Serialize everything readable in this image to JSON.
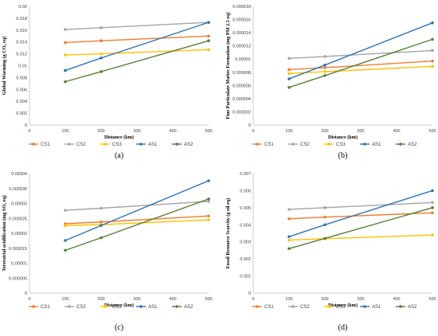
{
  "colors": {
    "CS1": "#ED7D31",
    "CS2": "#A5A5A5",
    "CS3": "#FFC000",
    "AS1": "#2E75B6",
    "AS2": "#548235"
  },
  "chart_data": [
    {
      "type": "line",
      "panel_label": "(a)",
      "xlabel": "Distance (km)",
      "ylabel": "Global Warming (g CO₂ eq)",
      "xlim": [
        0,
        500
      ],
      "ylim": [
        0,
        0.02
      ],
      "x_ticks": [
        "0",
        "100",
        "200",
        "300",
        "400",
        "500"
      ],
      "y_ticks": [
        "0",
        "0.002",
        "0.004",
        "0.006",
        "0.008",
        "0.01",
        "0.012",
        "0.014",
        "0.016",
        "0.018",
        "0.02"
      ],
      "x": [
        100,
        200,
        500
      ],
      "series": [
        {
          "name": "CS1",
          "values": [
            0.0139,
            0.0142,
            0.015
          ]
        },
        {
          "name": "CS2",
          "values": [
            0.0161,
            0.0164,
            0.0173
          ]
        },
        {
          "name": "CS3",
          "values": [
            0.0118,
            0.012,
            0.0127
          ]
        },
        {
          "name": "AS1",
          "values": [
            0.0092,
            0.0113,
            0.0173
          ]
        },
        {
          "name": "AS2",
          "values": [
            0.0073,
            0.009,
            0.0142
          ]
        }
      ],
      "grid": false,
      "legend": "bottom"
    },
    {
      "type": "line",
      "panel_label": "(b)",
      "xlabel": "Distance (km)",
      "ylabel": "Fine Particulate Matter Formation (mg PM 2.5 eq)",
      "xlim": [
        0,
        500
      ],
      "ylim": [
        0,
        1.8e-05
      ],
      "x_ticks": [
        "0",
        "100",
        "200",
        "300",
        "400",
        "500"
      ],
      "y_ticks": [
        "0",
        "0.000002",
        "0.000004",
        "0.000006",
        "0.000008",
        "0.00001",
        "0.000012",
        "0.000014",
        "0.000016",
        "0.000018"
      ],
      "x": [
        100,
        200,
        500
      ],
      "series": [
        {
          "name": "CS1",
          "values": [
            8.4e-06,
            8.7e-06,
            9.7e-06
          ]
        },
        {
          "name": "CS2",
          "values": [
            1.01e-05,
            1.04e-05,
            1.13e-05
          ]
        },
        {
          "name": "CS3",
          "values": [
            7.8e-06,
            8.1e-06,
            8.9e-06
          ]
        },
        {
          "name": "AS1",
          "values": [
            7e-06,
            9.1e-06,
            1.55e-05
          ]
        },
        {
          "name": "AS2",
          "values": [
            5.7e-06,
            7.5e-06,
            1.3e-05
          ]
        }
      ],
      "grid": false,
      "legend": "bottom"
    },
    {
      "type": "line",
      "panel_label": "(c)",
      "xlabel": "Distance (km)",
      "ylabel": "Terrestrial acidification (mg SO₂ eq)",
      "xlim": [
        0,
        500
      ],
      "ylim": [
        0,
        4e-05
      ],
      "x_ticks": [
        "0",
        "100",
        "200",
        "300",
        "400",
        "500"
      ],
      "y_ticks": [
        "0",
        "0.000005",
        "0.00001",
        "0.000015",
        "0.00002",
        "0.000025",
        "0.00003",
        "0.000035",
        "0.00004"
      ],
      "x": [
        100,
        200,
        500
      ],
      "series": [
        {
          "name": "CS1",
          "values": [
            2.32e-05,
            2.38e-05,
            2.58e-05
          ]
        },
        {
          "name": "CS2",
          "values": [
            2.77e-05,
            2.84e-05,
            3.07e-05
          ]
        },
        {
          "name": "CS3",
          "values": [
            2.26e-05,
            2.29e-05,
            2.45e-05
          ]
        },
        {
          "name": "AS1",
          "values": [
            1.76e-05,
            2.26e-05,
            3.76e-05
          ]
        },
        {
          "name": "AS2",
          "values": [
            1.43e-05,
            1.85e-05,
            3.15e-05
          ]
        }
      ],
      "grid": false,
      "legend": "bottom"
    },
    {
      "type": "line",
      "panel_label": "(d)",
      "xlabel": "Distance (km)",
      "ylabel": "Fossil Resource Scarcity (g oil eq)",
      "xlim": [
        0,
        500
      ],
      "ylim": [
        0,
        0.007
      ],
      "x_ticks": [
        "0",
        "100",
        "200",
        "300",
        "400",
        "500"
      ],
      "y_ticks": [
        "0",
        "0.001",
        "0.002",
        "0.003",
        "0.004",
        "0.005",
        "0.006",
        "0.007"
      ],
      "x": [
        100,
        200,
        500
      ],
      "series": [
        {
          "name": "CS1",
          "values": [
            0.00435,
            0.00445,
            0.0047
          ]
        },
        {
          "name": "CS2",
          "values": [
            0.0049,
            0.005,
            0.0053
          ]
        },
        {
          "name": "CS3",
          "values": [
            0.0031,
            0.00318,
            0.0034
          ]
        },
        {
          "name": "AS1",
          "values": [
            0.0033,
            0.004,
            0.006
          ]
        },
        {
          "name": "AS2",
          "values": [
            0.0026,
            0.0032,
            0.005
          ]
        }
      ],
      "grid": false,
      "legend": "bottom"
    }
  ]
}
